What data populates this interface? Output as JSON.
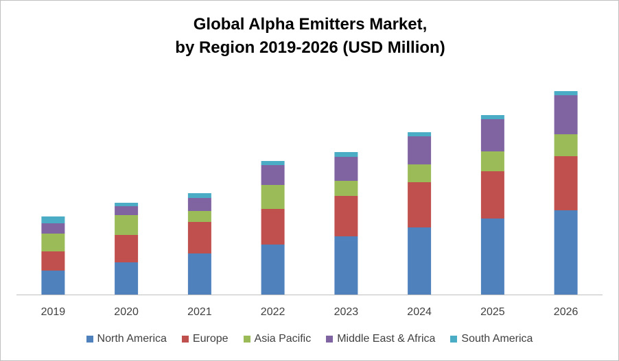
{
  "chart_data": {
    "type": "bar",
    "stacked": true,
    "title_lines": [
      "Global Alpha Emitters Market,",
      "by Region 2019-2026 (USD Million)"
    ],
    "xlabel": "",
    "ylabel": "",
    "categories": [
      "2019",
      "2020",
      "2021",
      "2022",
      "2023",
      "2024",
      "2025",
      "2026"
    ],
    "ylim": [
      0,
      300
    ],
    "grid": false,
    "y_axis_visible": false,
    "legend_position": "bottom",
    "series": [
      {
        "name": "North America",
        "color": "#4f81bd",
        "values": [
          35,
          47,
          60,
          73,
          85,
          98,
          111,
          123
        ]
      },
      {
        "name": "Europe",
        "color": "#c0504d",
        "values": [
          28,
          40,
          46,
          52,
          59,
          66,
          69,
          79
        ]
      },
      {
        "name": "Asia Pacific",
        "color": "#9bbb59",
        "values": [
          26,
          29,
          16,
          35,
          22,
          26,
          29,
          32
        ]
      },
      {
        "name": "Middle East & Africa",
        "color": "#8064a2",
        "values": [
          15,
          13,
          19,
          29,
          35,
          41,
          47,
          57
        ]
      },
      {
        "name": "South America",
        "color": "#4bacc6",
        "values": [
          10,
          5,
          7,
          6,
          7,
          6,
          6,
          6
        ]
      }
    ]
  }
}
